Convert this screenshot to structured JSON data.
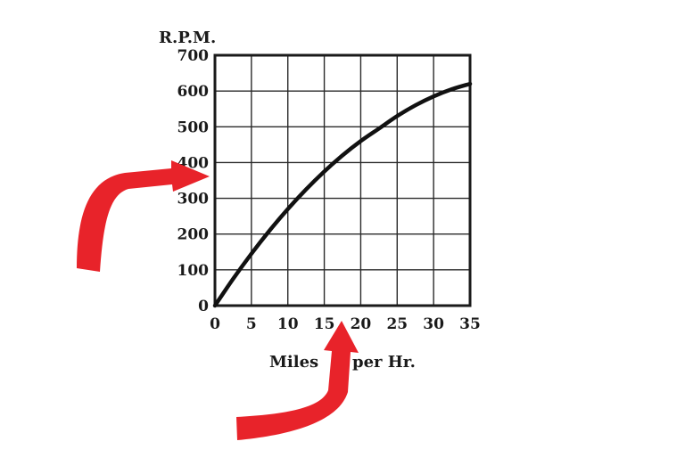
{
  "chart_data": {
    "type": "line",
    "ylabel": "R.P.M.",
    "xlabel_left": "Miles",
    "xlabel_right": "per Hr.",
    "xlim": [
      0,
      35
    ],
    "ylim": [
      0,
      700
    ],
    "x_ticks": [
      "0",
      "5",
      "10",
      "15",
      "20",
      "25",
      "30",
      "35"
    ],
    "y_ticks": [
      "0",
      "100",
      "200",
      "300",
      "400",
      "500",
      "600",
      "700"
    ],
    "grid": true,
    "series": [
      {
        "x": [
          0,
          2.5,
          5,
          7.5,
          10,
          12.5,
          15,
          17.5,
          20,
          22.5,
          25,
          27.5,
          30,
          32.5,
          35
        ],
        "y": [
          0,
          75,
          145,
          210,
          270,
          325,
          375,
          420,
          460,
          495,
          530,
          560,
          585,
          605,
          620
        ]
      }
    ],
    "annotations": [
      {
        "type": "arrow",
        "points_to": "y-axis"
      },
      {
        "type": "arrow",
        "points_to": "x-axis"
      }
    ],
    "colors": {
      "line": "#111111",
      "grid": "#2a2a2a",
      "arrow": "#e8232a"
    }
  }
}
